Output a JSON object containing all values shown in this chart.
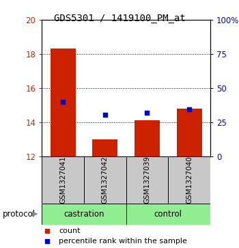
{
  "title": "GDS5301 / 1419100_PM_at",
  "samples": [
    "GSM1327041",
    "GSM1327042",
    "GSM1327039",
    "GSM1327040"
  ],
  "bar_bottom": 12,
  "bar_tops": [
    18.3,
    13.0,
    14.1,
    14.8
  ],
  "percentile_values": [
    15.2,
    14.45,
    14.55,
    14.75
  ],
  "ylim_left": [
    12,
    20
  ],
  "ylim_right": [
    0,
    100
  ],
  "yticks_left": [
    12,
    14,
    16,
    18,
    20
  ],
  "yticks_right": [
    0,
    25,
    50,
    75,
    100
  ],
  "ytick_labels_right": [
    "0",
    "25",
    "50",
    "75",
    "100%"
  ],
  "bar_color": "#cc2200",
  "dot_color": "#0000cc",
  "sample_box_color": "#c8c8c8",
  "group_box_color": "#90EE90",
  "legend_count_label": "count",
  "legend_pct_label": "percentile rank within the sample",
  "left_axis_color": "#cc2200",
  "right_axis_color": "#0000cc",
  "dotted_gridlines": [
    14,
    16,
    18
  ],
  "title_font": "monospace",
  "title_fontsize": 10,
  "bar_width": 0.6
}
